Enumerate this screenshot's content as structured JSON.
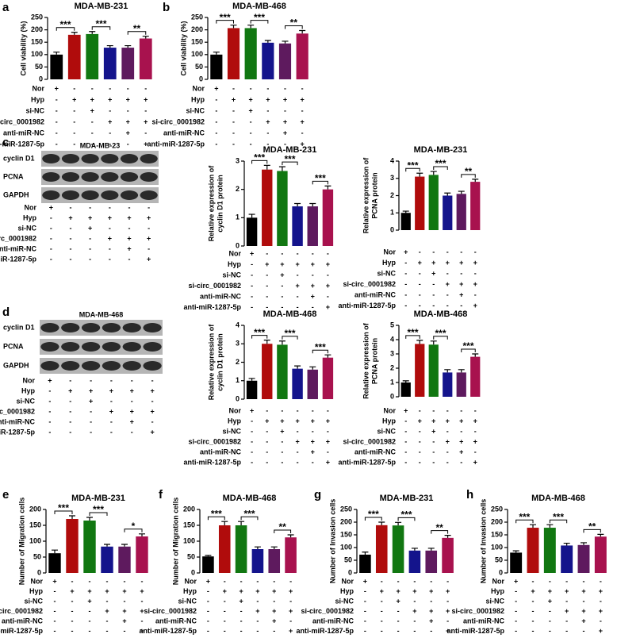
{
  "bar_colors": [
    "#000000",
    "#b00c0c",
    "#117711",
    "#14148c",
    "#5e1a5e",
    "#a8124e"
  ],
  "conditions": [
    {
      "label": "Nor",
      "signs": [
        "+",
        "-",
        "-",
        "-",
        "-",
        "-"
      ]
    },
    {
      "label": "Hyp",
      "signs": [
        "-",
        "+",
        "+",
        "+",
        "+",
        "+"
      ]
    },
    {
      "label": "si-NC",
      "signs": [
        "-",
        "-",
        "+",
        "-",
        "-",
        "-"
      ]
    },
    {
      "label": "si-circ_0001982",
      "signs": [
        "-",
        "-",
        "-",
        "+",
        "+",
        "+"
      ]
    },
    {
      "label": "anti-miR-NC",
      "signs": [
        "-",
        "-",
        "-",
        "-",
        "+",
        "-"
      ]
    },
    {
      "label": "anti-miR-1287-5p",
      "signs": [
        "-",
        "-",
        "-",
        "-",
        "-",
        "+"
      ]
    }
  ],
  "blots": [
    {
      "panel": "c",
      "title": "MDA-MB-23",
      "bands": [
        "cyclin D1",
        "PCNA",
        "GAPDH"
      ]
    },
    {
      "panel": "d",
      "title": "MDA-MB-468",
      "bands": [
        "cyclin D1",
        "PCNA",
        "GAPDH"
      ]
    }
  ],
  "chart_data": [
    {
      "type": "bar",
      "panel": "a",
      "title": "MDA-MB-231",
      "ylabel": [
        "Cell viability (%)"
      ],
      "ylim": [
        0,
        250
      ],
      "yticks": [
        0,
        50,
        100,
        150,
        200,
        250
      ],
      "values": [
        100,
        180,
        183,
        128,
        128,
        165
      ],
      "errors": [
        10,
        10,
        10,
        8,
        8,
        9
      ],
      "annotations": [
        "***",
        "***",
        "**"
      ]
    },
    {
      "type": "bar",
      "panel": "b",
      "title": "MDA-MB-468",
      "ylabel": [
        "Cell viability (%)"
      ],
      "ylim": [
        0,
        250
      ],
      "yticks": [
        0,
        50,
        100,
        150,
        200,
        250
      ],
      "values": [
        100,
        207,
        207,
        148,
        145,
        185
      ],
      "errors": [
        10,
        12,
        12,
        9,
        9,
        12
      ],
      "annotations": [
        "***",
        "***",
        "**"
      ]
    },
    {
      "type": "bar",
      "title": "MDA-MB-231",
      "ylabel": [
        "Relative expression of",
        "cyclin D1 protein"
      ],
      "ylim": [
        0,
        3
      ],
      "yticks": [
        0,
        1,
        2,
        3
      ],
      "values": [
        1.0,
        2.7,
        2.65,
        1.4,
        1.4,
        2.0
      ],
      "errors": [
        0.12,
        0.15,
        0.15,
        0.1,
        0.1,
        0.12
      ],
      "annotations": [
        "***",
        "***",
        "***"
      ]
    },
    {
      "type": "bar",
      "title": "MDA-MB-231",
      "ylabel": [
        "Relative expression of",
        "PCNA protein"
      ],
      "ylim": [
        0,
        4
      ],
      "yticks": [
        0,
        1,
        2,
        3,
        4
      ],
      "values": [
        1.0,
        3.1,
        3.2,
        2.0,
        2.1,
        2.8
      ],
      "errors": [
        0.1,
        0.2,
        0.2,
        0.15,
        0.15,
        0.15
      ],
      "annotations": [
        "***",
        "***",
        "**"
      ]
    },
    {
      "type": "bar",
      "title": "MDA-MB-468",
      "ylabel": [
        "Relative expression of",
        "cyclin D1 protein"
      ],
      "ylim": [
        0,
        4
      ],
      "yticks": [
        0,
        1,
        2,
        3,
        4
      ],
      "values": [
        1.0,
        3.0,
        2.95,
        1.65,
        1.6,
        2.25
      ],
      "errors": [
        0.12,
        0.2,
        0.2,
        0.15,
        0.15,
        0.15
      ],
      "annotations": [
        "***",
        "***",
        "***"
      ]
    },
    {
      "type": "bar",
      "title": "MDA-MB-468",
      "ylabel": [
        "Relative expression of",
        "PCNA protein"
      ],
      "ylim": [
        0,
        5
      ],
      "yticks": [
        0,
        1,
        2,
        3,
        4,
        5
      ],
      "values": [
        1.0,
        3.7,
        3.65,
        1.7,
        1.7,
        2.8
      ],
      "errors": [
        0.12,
        0.25,
        0.25,
        0.2,
        0.2,
        0.2
      ],
      "annotations": [
        "***",
        "***",
        "***"
      ]
    },
    {
      "type": "bar",
      "panel": "e",
      "title": "MDA-MB-231",
      "ylabel": [
        "Number of Migration cells"
      ],
      "ylim": [
        0,
        200
      ],
      "yticks": [
        0,
        50,
        100,
        150,
        200
      ],
      "values": [
        62,
        170,
        165,
        83,
        83,
        115
      ],
      "errors": [
        10,
        10,
        10,
        7,
        7,
        8
      ],
      "annotations": [
        "***",
        "***",
        "*"
      ]
    },
    {
      "type": "bar",
      "panel": "f",
      "title": "MDA-MB-468",
      "ylabel": [
        "Number of Migration cells"
      ],
      "ylim": [
        0,
        200
      ],
      "yticks": [
        0,
        50,
        100,
        150,
        200
      ],
      "values": [
        52,
        150,
        150,
        75,
        75,
        112
      ],
      "errors": [
        3,
        12,
        12,
        7,
        7,
        8
      ],
      "annotations": [
        "***",
        "***",
        "**"
      ]
    },
    {
      "type": "bar",
      "panel": "g",
      "title": "MDA-MB-231",
      "ylabel": [
        "Number of Invasion cells"
      ],
      "ylim": [
        0,
        250
      ],
      "yticks": [
        0,
        50,
        100,
        150,
        200,
        250
      ],
      "values": [
        72,
        188,
        187,
        88,
        88,
        138
      ],
      "errors": [
        10,
        12,
        12,
        9,
        9,
        10
      ],
      "annotations": [
        "***",
        "***",
        "**"
      ]
    },
    {
      "type": "bar",
      "panel": "h",
      "title": "MDA-MB-468",
      "ylabel": [
        "Number of Invasion cells"
      ],
      "ylim": [
        0,
        250
      ],
      "yticks": [
        0,
        50,
        100,
        150,
        200,
        250
      ],
      "values": [
        80,
        178,
        178,
        108,
        110,
        143
      ],
      "errors": [
        7,
        12,
        12,
        9,
        9,
        9
      ],
      "annotations": [
        "***",
        "***",
        "**"
      ]
    }
  ]
}
